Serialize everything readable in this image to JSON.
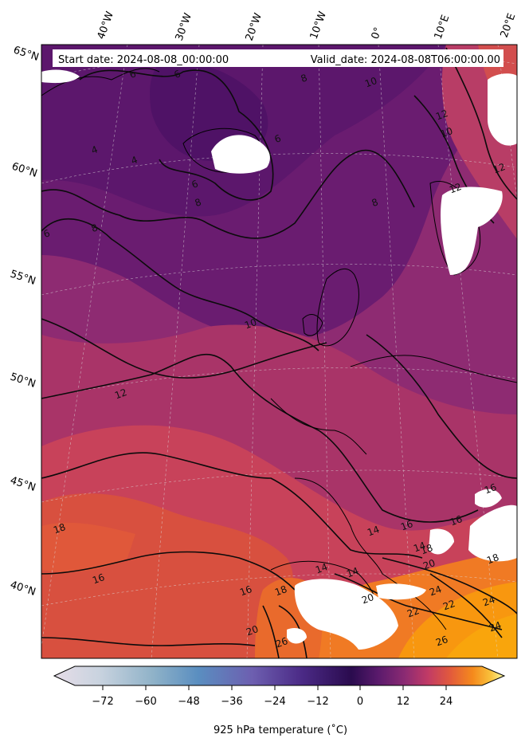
{
  "header": {
    "start_date": "Start date: 2024-08-08_00:00:00",
    "valid_date": "Valid_date: 2024-08-08T06:00:00.00"
  },
  "longitude_labels": [
    "40°W",
    "30°W",
    "20°W",
    "10°W",
    "0°",
    "10°E",
    "20°E"
  ],
  "latitude_labels": [
    "65°N",
    "60°N",
    "55°N",
    "50°N",
    "45°N",
    "40°N"
  ],
  "contour_labels": [
    "6",
    "6",
    "6",
    "4",
    "4",
    "6",
    "6",
    "8",
    "8",
    "8",
    "8",
    "10",
    "10",
    "12",
    "10",
    "12",
    "12",
    "12",
    "14",
    "14",
    "14",
    "14",
    "16",
    "16",
    "16",
    "16",
    "16",
    "18",
    "18",
    "18",
    "18",
    "20",
    "20",
    "20",
    "22",
    "22",
    "24",
    "24",
    "24",
    "26",
    "26"
  ],
  "colorbar": {
    "ticks": [
      "−72",
      "−60",
      "−48",
      "−36",
      "−24",
      "−12",
      "0",
      "12",
      "24"
    ],
    "label": "925 hPa temperature (˚C)",
    "extend": "both",
    "colormap": [
      "#e6dde8",
      "#8fb2c8",
      "#5a8ec0",
      "#6d5fb0",
      "#4b2a86",
      "#2a0b4e",
      "#5a1a6c",
      "#8c2b73",
      "#c13a66",
      "#e25a3c",
      "#f58a1c",
      "#f9c23c",
      "#fcfca4"
    ]
  },
  "field": {
    "variable": "925 hPa temperature",
    "units": "°C",
    "contour_interval": 2,
    "value_range_visible": [
      4,
      26
    ]
  }
}
